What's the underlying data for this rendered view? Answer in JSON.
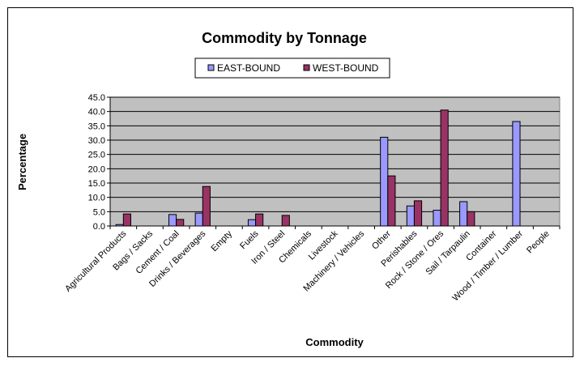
{
  "chart_data": {
    "type": "bar",
    "title": "Commodity by Tonnage",
    "xlabel": "Commodity",
    "ylabel": "Percentage",
    "ylim": [
      0,
      45
    ],
    "yticks": [
      "0.0",
      "5.0",
      "10.0",
      "15.0",
      "20.0",
      "25.0",
      "30.0",
      "35.0",
      "40.0",
      "45.0"
    ],
    "legend_position": "top",
    "categories": [
      "Agricultural Products",
      "Bags / Sacks",
      "Cement / Coal",
      "Drinks / Beverages",
      "Empty",
      "Fuels",
      "Iron / Steel",
      "Chemicals",
      "Livestock",
      "Machinery / Vehicles",
      "Other",
      "Perishables",
      "Rock / Stone / Ores",
      "Sail / Tarpaulin",
      "Container",
      "Wood / Timber / Lumber",
      "People"
    ],
    "series": [
      {
        "name": "EAST-BOUND",
        "color": "#9999ff",
        "values": [
          0.5,
          0,
          4.0,
          4.5,
          0,
          2.2,
          0,
          0,
          0,
          0,
          31.0,
          7.0,
          5.5,
          8.5,
          0,
          36.5,
          0
        ]
      },
      {
        "name": "WEST-BOUND",
        "color": "#993366",
        "values": [
          4.2,
          0,
          2.3,
          13.8,
          0,
          4.2,
          3.7,
          0,
          0,
          0,
          17.5,
          8.8,
          40.5,
          5.0,
          0,
          0,
          0
        ]
      }
    ]
  }
}
